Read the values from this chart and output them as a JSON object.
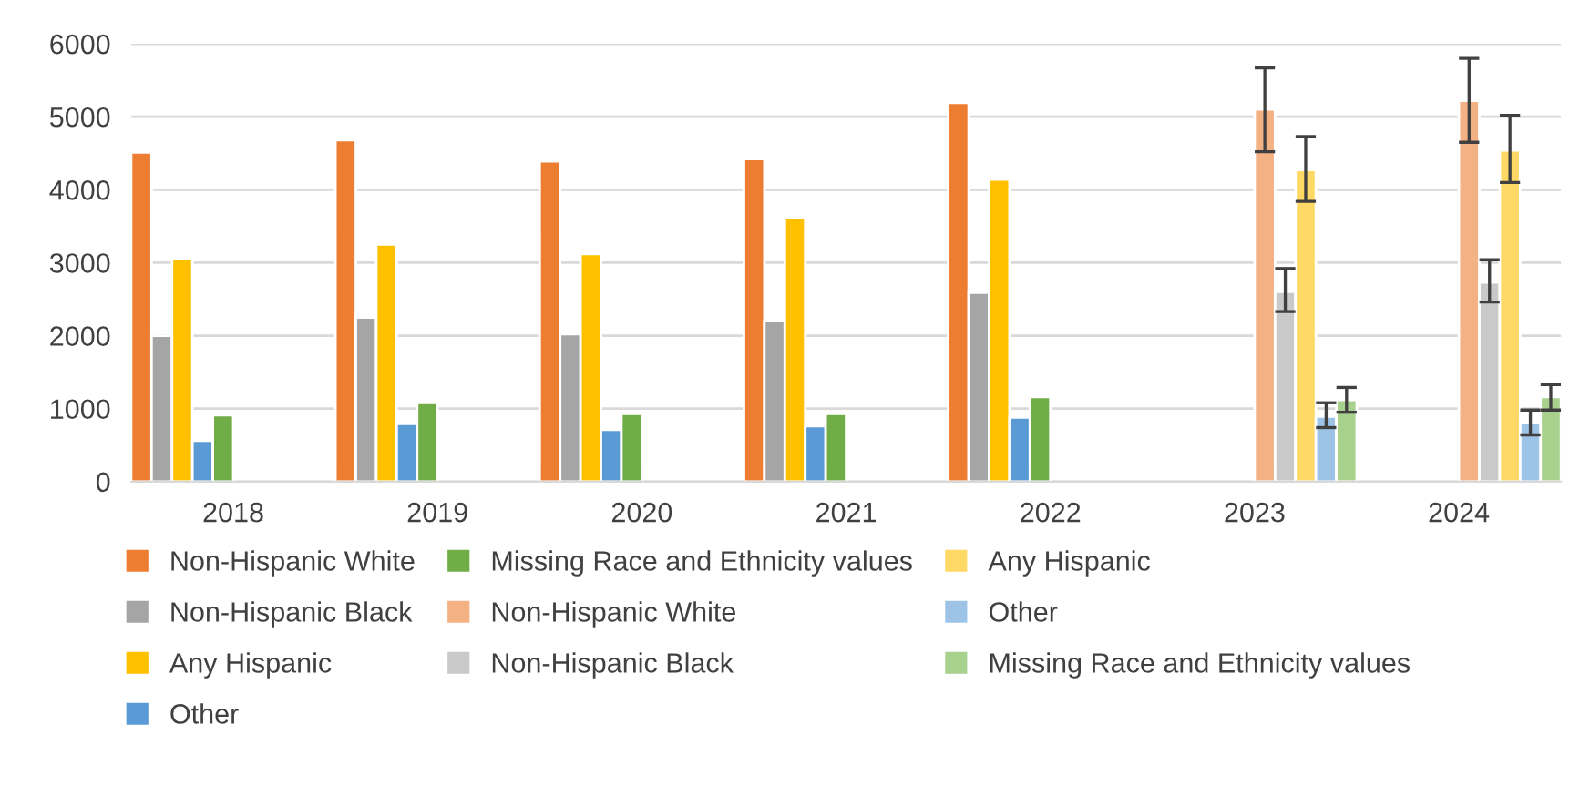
{
  "chart_data": {
    "type": "bar",
    "categories": [
      "2018",
      "2019",
      "2020",
      "2021",
      "2022",
      "2023",
      "2024"
    ],
    "series": [
      {
        "name": "Non-Hispanic White",
        "color": "#ed7d31",
        "values": [
          4510,
          4680,
          4390,
          4420,
          5190,
          null,
          null
        ]
      },
      {
        "name": "Non-Hispanic Black",
        "color": "#a5a5a5",
        "values": [
          2000,
          2250,
          2020,
          2200,
          2590,
          null,
          null
        ]
      },
      {
        "name": "Any Hispanic",
        "color": "#ffc000",
        "values": [
          3060,
          3250,
          3120,
          3610,
          4140,
          null,
          null
        ]
      },
      {
        "name": "Other",
        "color": "#5b9bd5",
        "values": [
          560,
          790,
          710,
          760,
          880,
          null,
          null
        ]
      },
      {
        "name": "Missing Race and Ethnicity values",
        "color": "#70ad47",
        "values": [
          910,
          1080,
          930,
          930,
          1160,
          null,
          null
        ]
      },
      {
        "name": "Non-Hispanic White",
        "color": "#f4b183",
        "values": [
          null,
          null,
          null,
          null,
          null,
          5100,
          5220
        ],
        "errors": [
          null,
          null,
          null,
          null,
          null,
          [
            4520,
            5670
          ],
          [
            4650,
            5800
          ]
        ]
      },
      {
        "name": "Non-Hispanic Black",
        "color": "#c9c9c9",
        "values": [
          null,
          null,
          null,
          null,
          null,
          2600,
          2730
        ],
        "errors": [
          null,
          null,
          null,
          null,
          null,
          [
            2330,
            2920
          ],
          [
            2460,
            3040
          ]
        ]
      },
      {
        "name": "Any Hispanic",
        "color": "#ffd966",
        "values": [
          null,
          null,
          null,
          null,
          null,
          4270,
          4540
        ],
        "errors": [
          null,
          null,
          null,
          null,
          null,
          [
            3840,
            4730
          ],
          [
            4100,
            5020
          ]
        ]
      },
      {
        "name": "Other",
        "color": "#9dc3e6",
        "values": [
          null,
          null,
          null,
          null,
          null,
          890,
          810
        ],
        "errors": [
          null,
          null,
          null,
          null,
          null,
          [
            740,
            1080
          ],
          [
            640,
            980
          ]
        ]
      },
      {
        "name": "Missing Race and Ethnicity values",
        "color": "#a9d18e",
        "values": [
          null,
          null,
          null,
          null,
          null,
          1120,
          1160
        ],
        "errors": [
          null,
          null,
          null,
          null,
          null,
          [
            950,
            1290
          ],
          [
            980,
            1330
          ]
        ]
      }
    ],
    "ylim": [
      0,
      6000
    ],
    "yticks": [
      0,
      1000,
      2000,
      3000,
      4000,
      5000,
      6000
    ],
    "grid": "y",
    "legend": "bottom"
  }
}
